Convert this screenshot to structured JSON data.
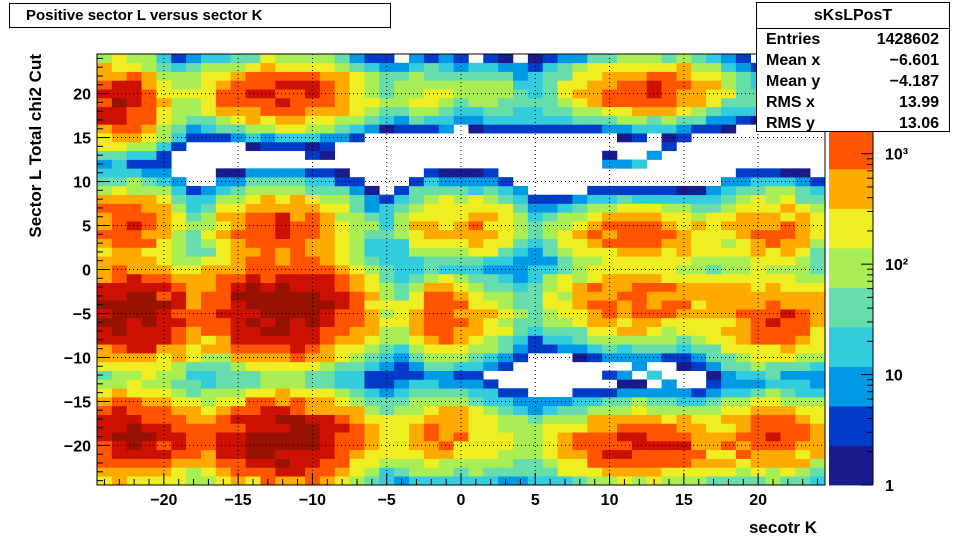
{
  "title": "Positive sector L versus sector K",
  "stats": {
    "name": "sKsLPosT",
    "rows": [
      {
        "label": "Entries",
        "value": "1428602"
      },
      {
        "label": "Mean x",
        "value": "−6.601"
      },
      {
        "label": "Mean y",
        "value": "−4.187"
      },
      {
        "label": "RMS x",
        "value": "13.99"
      },
      {
        "label": "RMS y",
        "value": "13.06"
      }
    ]
  },
  "chart_data": {
    "type": "heatmap",
    "xlabel": "secotr K",
    "ylabel": "Sector L  Total chi2 Cut",
    "xlim": [
      -24.5,
      24.5
    ],
    "ylim": [
      -24.5,
      24.5
    ],
    "x_ticks": [
      -20,
      -15,
      -10,
      -5,
      0,
      5,
      10,
      15,
      20
    ],
    "x_tick_labels": [
      "−20",
      "−15",
      "−10",
      "−5",
      "0",
      "5",
      "10",
      "15",
      "20"
    ],
    "y_ticks": [
      -20,
      -15,
      -10,
      -5,
      0,
      5,
      10,
      15,
      20
    ],
    "y_tick_labels": [
      "−20",
      "−15",
      "−10",
      "−5",
      "0",
      "5",
      "10",
      "15",
      "20"
    ],
    "grid": true,
    "z_scale": "log",
    "z_range": [
      1,
      8000
    ],
    "z_ticks": [
      1,
      10,
      100,
      1000
    ],
    "z_tick_labels": [
      "1",
      "10",
      "10²",
      "10³"
    ],
    "palette": [
      "#1a1a8c",
      "#003cc8",
      "#0099e6",
      "#33ccdd",
      "#66ddaa",
      "#aaee55",
      "#eeee22",
      "#ffaa00",
      "#ff5500",
      "#cc1100",
      "#991100"
    ],
    "blobs": [
      {
        "cx": -23,
        "cy": 19,
        "sx": 1.5,
        "sy": 2.0,
        "amp": 3000
      },
      {
        "cx": -20,
        "cy": 18,
        "sx": 1.2,
        "sy": 1.0,
        "amp": 20
      },
      {
        "cx": -12,
        "cy": 20,
        "sx": 2.5,
        "sy": 1.6,
        "amp": 2500
      },
      {
        "cx": -5,
        "cy": 19,
        "sx": 1.0,
        "sy": 1.0,
        "amp": 30
      },
      {
        "cx": -2,
        "cy": 20,
        "sx": 1.2,
        "sy": 1.5,
        "amp": 200
      },
      {
        "cx": 2,
        "cy": 20,
        "sx": 1.2,
        "sy": 1.5,
        "amp": 100
      },
      {
        "cx": 5,
        "cy": 18,
        "sx": 1.5,
        "sy": 1.0,
        "amp": 20
      },
      {
        "cx": 12.5,
        "cy": 20.5,
        "sx": 2.5,
        "sy": 1.5,
        "amp": 1500
      },
      {
        "cx": 22,
        "cy": 19,
        "sx": 1.3,
        "sy": 1.0,
        "amp": 40
      },
      {
        "cx": -22.5,
        "cy": 5,
        "sx": 1.5,
        "sy": 2.0,
        "amp": 1500
      },
      {
        "cx": -19,
        "cy": 4,
        "sx": 1.2,
        "sy": 1.0,
        "amp": 20
      },
      {
        "cx": -12,
        "cy": 4.5,
        "sx": 2.2,
        "sy": 2.0,
        "amp": 1500
      },
      {
        "cx": -4,
        "cy": 5,
        "sx": 1.2,
        "sy": 1.0,
        "amp": 30
      },
      {
        "cx": -1.5,
        "cy": 5,
        "sx": 1.2,
        "sy": 1.8,
        "amp": 500
      },
      {
        "cx": 1.5,
        "cy": 5,
        "sx": 1.2,
        "sy": 1.8,
        "amp": 500
      },
      {
        "cx": 4.5,
        "cy": 5,
        "sx": 1.2,
        "sy": 1.0,
        "amp": 30
      },
      {
        "cx": 12,
        "cy": 4,
        "sx": 2.5,
        "sy": 1.5,
        "amp": 1200
      },
      {
        "cx": 21,
        "cy": 4.5,
        "sx": 1.8,
        "sy": 2.0,
        "amp": 800
      },
      {
        "cx": -22,
        "cy": -5,
        "sx": 2.0,
        "sy": 2.5,
        "amp": 5000
      },
      {
        "cx": -18.5,
        "cy": -6,
        "sx": 1.2,
        "sy": 1.0,
        "amp": 30
      },
      {
        "cx": -12,
        "cy": -4.5,
        "sx": 2.5,
        "sy": 2.5,
        "amp": 7000
      },
      {
        "cx": -4.5,
        "cy": -6,
        "sx": 1.2,
        "sy": 1.0,
        "amp": 30
      },
      {
        "cx": -1.2,
        "cy": -5.5,
        "sx": 1.2,
        "sy": 2.0,
        "amp": 1500
      },
      {
        "cx": 1.5,
        "cy": -5.5,
        "sx": 1.2,
        "sy": 2.0,
        "amp": 300
      },
      {
        "cx": 5,
        "cy": -6,
        "sx": 1.2,
        "sy": 1.0,
        "amp": 20
      },
      {
        "cx": 12,
        "cy": -3.5,
        "sx": 2.8,
        "sy": 2.0,
        "amp": 1200
      },
      {
        "cx": 21,
        "cy": -5.5,
        "sx": 2.0,
        "sy": 2.2,
        "amp": 1500
      },
      {
        "cx": -22,
        "cy": -19,
        "sx": 2.0,
        "sy": 2.2,
        "amp": 4000
      },
      {
        "cx": -18,
        "cy": -18.5,
        "sx": 1.2,
        "sy": 1.0,
        "amp": 20
      },
      {
        "cx": -12,
        "cy": -19.5,
        "sx": 2.5,
        "sy": 2.2,
        "amp": 6000
      },
      {
        "cx": -5,
        "cy": -18.5,
        "sx": 1.2,
        "sy": 1.0,
        "amp": 30
      },
      {
        "cx": -1.5,
        "cy": -18.5,
        "sx": 1.5,
        "sy": 2.0,
        "amp": 800
      },
      {
        "cx": 2,
        "cy": -19.5,
        "sx": 1.5,
        "sy": 2.0,
        "amp": 200
      },
      {
        "cx": 5,
        "cy": -18.5,
        "sx": 1.2,
        "sy": 1.0,
        "amp": 20
      },
      {
        "cx": 12,
        "cy": -20,
        "sx": 2.8,
        "sy": 1.8,
        "amp": 2000
      },
      {
        "cx": 21,
        "cy": -19,
        "sx": 2.0,
        "sy": 2.0,
        "amp": 1200
      }
    ],
    "sparse_cells": [
      [
        -12,
        11,
        8
      ],
      [
        -11,
        11,
        3
      ],
      [
        -10,
        13,
        5
      ],
      [
        -9,
        14,
        3
      ],
      [
        -9,
        13,
        2
      ],
      [
        -10,
        -12,
        8
      ],
      [
        -11,
        -11,
        3
      ],
      [
        -12,
        -12,
        15
      ],
      [
        -13,
        -11,
        5
      ],
      [
        -9,
        -11,
        3
      ],
      [
        10,
        13,
        2
      ],
      [
        10,
        12,
        8
      ],
      [
        11,
        12,
        10
      ],
      [
        12,
        12,
        20
      ],
      [
        13,
        13,
        8
      ],
      [
        14,
        14,
        5
      ],
      [
        15,
        15,
        3
      ],
      [
        10,
        -12,
        5
      ],
      [
        11,
        -13,
        2
      ],
      [
        12,
        -11,
        8
      ],
      [
        13,
        -12,
        15
      ],
      [
        11,
        -12,
        10
      ],
      [
        14,
        -13,
        8
      ],
      [
        15,
        -15,
        5
      ],
      [
        18,
        17,
        2
      ],
      [
        19,
        18,
        3
      ],
      [
        -18,
        17,
        2
      ],
      [
        -24,
        14,
        3
      ],
      [
        -24,
        -11,
        3
      ],
      [
        -24,
        11,
        5
      ]
    ]
  }
}
